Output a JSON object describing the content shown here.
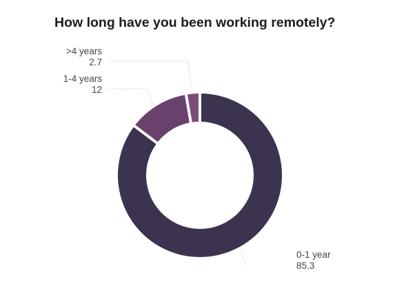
{
  "chart_data": {
    "type": "pie",
    "subtype": "donut",
    "title": "How long have you been working remotely?",
    "categories": [
      "0-1 year",
      "1-4 years",
      ">4 years"
    ],
    "values": [
      85.3,
      12,
      2.7
    ],
    "value_labels": [
      "85.3",
      "12",
      "2.7"
    ],
    "colors": [
      "#3c3350",
      "#6a416d",
      "#7e4c7a"
    ],
    "legend": "none",
    "grid": false
  }
}
